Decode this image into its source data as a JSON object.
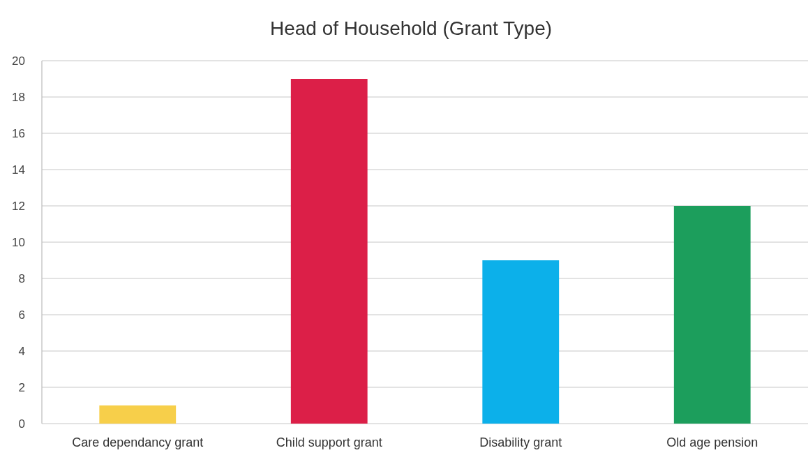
{
  "chart_data": {
    "type": "bar",
    "title": "Head of Household (Grant Type)",
    "categories": [
      "Care dependancy grant",
      "Child support grant",
      "Disability grant",
      "Old age pension"
    ],
    "values": [
      1,
      19,
      9,
      12
    ],
    "colors": [
      "#f7cf4a",
      "#dc1f48",
      "#0cb0ea",
      "#1c9e5c"
    ],
    "ylim": [
      0,
      20
    ],
    "yticks": [
      0,
      2,
      4,
      6,
      8,
      10,
      12,
      14,
      16,
      18,
      20
    ],
    "grid": "y"
  }
}
